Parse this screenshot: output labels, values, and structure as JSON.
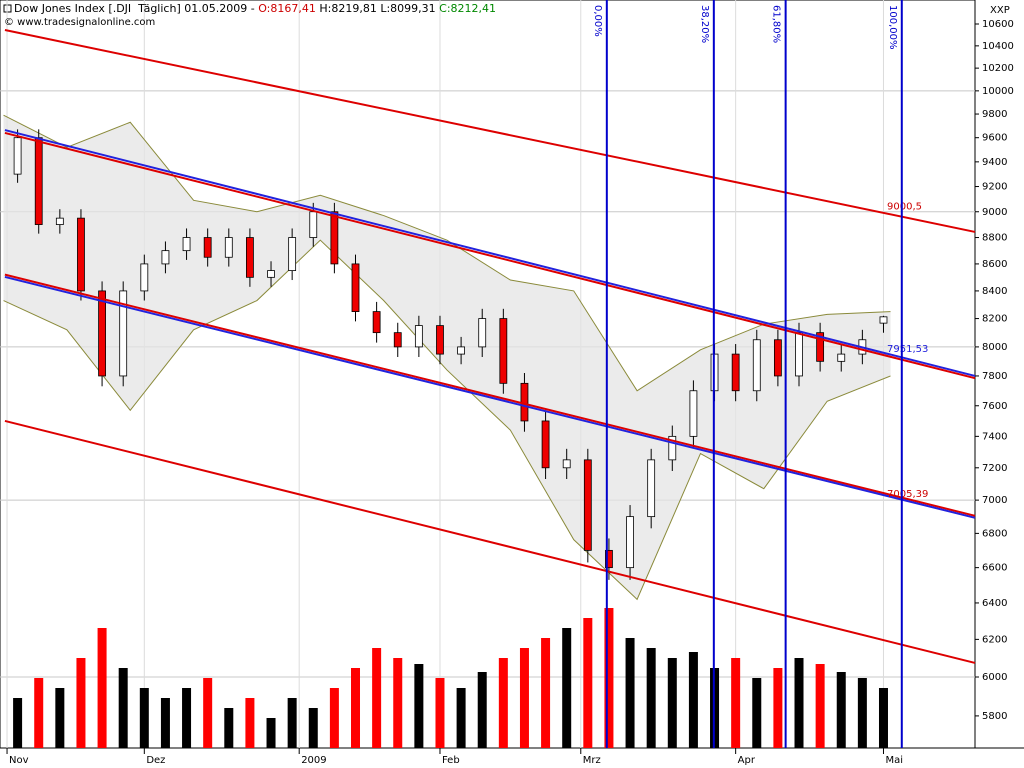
{
  "chart_data": {
    "type": "candlestick",
    "title_parts": [
      {
        "text": "Dow Jones Index [.DJI  Täglich] 01.05.2009 - ",
        "color": "#000000"
      },
      {
        "text": "O:8167,41",
        "color": "#cc0000"
      },
      {
        "text": " H:8219,81",
        "color": "#000000"
      },
      {
        "text": " L:8099,31",
        "color": "#000000"
      },
      {
        "text": " C:8212,41",
        "color": "#008800"
      }
    ],
    "subtitle": "© www.tradesignalonline.com",
    "y_label": "XXP",
    "log": true,
    "grid": true,
    "xlim": [
      -0.5,
      138
    ],
    "ylim": [
      5640,
      10824
    ],
    "xticks": [
      {
        "value": 0.5,
        "label": "Nov"
      },
      {
        "value": 20,
        "label": "Dez"
      },
      {
        "value": 42,
        "label": "2009"
      },
      {
        "value": 62,
        "label": "Feb"
      },
      {
        "value": 82,
        "label": "Mrz"
      },
      {
        "value": 104,
        "label": "Apr"
      },
      {
        "value": 125,
        "label": "Mai"
      }
    ],
    "yticks": [
      5800,
      6000,
      6200,
      6400,
      6600,
      6800,
      7000,
      7200,
      7400,
      7600,
      7800,
      8000,
      8200,
      8400,
      8600,
      8800,
      9000,
      9200,
      9400,
      9600,
      9800,
      10000,
      10200,
      10400,
      10600
    ],
    "x": [
      2,
      5,
      8,
      11,
      14,
      17,
      20,
      23,
      26,
      29,
      32,
      35,
      38,
      41,
      44,
      47,
      50,
      53,
      56,
      59,
      62,
      65,
      68,
      71,
      74,
      77,
      80,
      83,
      86,
      89,
      92,
      95,
      98,
      101,
      104,
      107,
      110,
      113,
      116,
      119,
      122,
      125
    ],
    "open": [
      9300,
      9600,
      8900,
      8950,
      8400,
      7800,
      8400,
      8600,
      8700,
      8800,
      8650,
      8800,
      8500,
      8550,
      8800,
      9000,
      8600,
      8250,
      8100,
      8000,
      8150,
      7950,
      8000,
      8200,
      7750,
      7500,
      7200,
      7250,
      6700,
      6600,
      6900,
      7250,
      7400,
      7700,
      7950,
      7700,
      8050,
      7800,
      8100,
      7900,
      7950,
      8167.41
    ],
    "high": [
      9670,
      9670,
      9020,
      9020,
      8470,
      8470,
      8670,
      8770,
      8870,
      8870,
      8870,
      8870,
      8620,
      8870,
      9070,
      9070,
      8670,
      8320,
      8170,
      8220,
      8220,
      8070,
      8270,
      8270,
      7820,
      7570,
      7320,
      7320,
      6770,
      6970,
      7320,
      7470,
      7770,
      8020,
      8020,
      8120,
      8120,
      8170,
      8170,
      8020,
      8120,
      8219.81
    ],
    "low": [
      9230,
      8830,
      8830,
      8330,
      7730,
      7730,
      8330,
      8530,
      8630,
      8580,
      8580,
      8430,
      8430,
      8480,
      8730,
      8530,
      8180,
      8030,
      7930,
      7930,
      7880,
      7880,
      7930,
      7680,
      7430,
      7130,
      7130,
      6630,
      6530,
      6530,
      6830,
      7180,
      7330,
      7630,
      7630,
      7630,
      7730,
      7730,
      7830,
      7830,
      7880,
      8099.31
    ],
    "close": [
      9600,
      8900,
      8950,
      8400,
      7800,
      8400,
      8600,
      8700,
      8800,
      8650,
      8800,
      8500,
      8550,
      8800,
      9000,
      8600,
      8250,
      8100,
      8000,
      8150,
      7950,
      8000,
      8200,
      7750,
      7500,
      7200,
      7250,
      6700,
      6600,
      6900,
      7250,
      7400,
      7700,
      7950,
      7700,
      8050,
      7800,
      8100,
      7900,
      7950,
      8050,
      8212.41
    ],
    "volume": [
      250,
      350,
      300,
      450,
      600,
      400,
      300,
      250,
      300,
      350,
      200,
      250,
      150,
      250,
      200,
      300,
      400,
      500,
      450,
      420,
      350,
      300,
      380,
      450,
      500,
      550,
      600,
      650,
      700,
      550,
      500,
      450,
      480,
      400,
      450,
      350,
      400,
      450,
      420,
      380,
      350,
      300
    ],
    "vlim": [
      0,
      800
    ],
    "up_color": "#ffffff",
    "down_color": "#ee0000",
    "volume_up_color": "#000000",
    "volume_down_color": "#ff0000",
    "band": {
      "color": "#e4e4e4",
      "edge_color": "#8a8a3a",
      "x": [
        0,
        9,
        18,
        27,
        36,
        45,
        54,
        63,
        72,
        81,
        90,
        99,
        108,
        117,
        126
      ],
      "upper": [
        9790,
        9520,
        9730,
        9090,
        9000,
        9130,
        8970,
        8780,
        8480,
        8400,
        7700,
        7980,
        8160,
        8230,
        8250
      ],
      "lower": [
        8330,
        8120,
        7570,
        8120,
        8330,
        8780,
        8330,
        7840,
        7440,
        6763,
        6420,
        7290,
        7070,
        7630,
        7800
      ]
    },
    "trendlines": [
      {
        "color": "#dd0000",
        "x": [
          0.2,
          138
        ],
        "values": [
          10545,
          8843
        ]
      },
      {
        "color": "#2222dd",
        "x": [
          0.2,
          138
        ],
        "values": [
          9664,
          7800
        ]
      },
      {
        "color": "#dd0000",
        "x": [
          0.2,
          138
        ],
        "values": [
          9640,
          7785
        ]
      },
      {
        "color": "#dd0000",
        "x": [
          0.2,
          138
        ],
        "values": [
          8520,
          6905
        ]
      },
      {
        "color": "#2222dd",
        "x": [
          0.2,
          138
        ],
        "values": [
          8503,
          6893
        ]
      },
      {
        "color": "#dd0000",
        "x": [
          0.2,
          138
        ],
        "values": [
          7500,
          6074
        ]
      }
    ],
    "line_labels": [
      {
        "value": 9000.5,
        "label": "9000,5",
        "color": "#cc0000",
        "x": 125.5
      },
      {
        "value": 7951.53,
        "label": "7951,53",
        "color": "#2222dd",
        "x": 125.5
      },
      {
        "value": 7005.39,
        "label": "7005,39",
        "color": "#cc0000",
        "x": 125.5
      }
    ],
    "fib_lines": {
      "color": "#0000cc",
      "x": [
        85.7,
        100.9,
        111.1,
        127.6
      ],
      "labels": [
        "0,00%",
        "38,20%",
        "61,80%",
        "100,00%"
      ]
    }
  }
}
